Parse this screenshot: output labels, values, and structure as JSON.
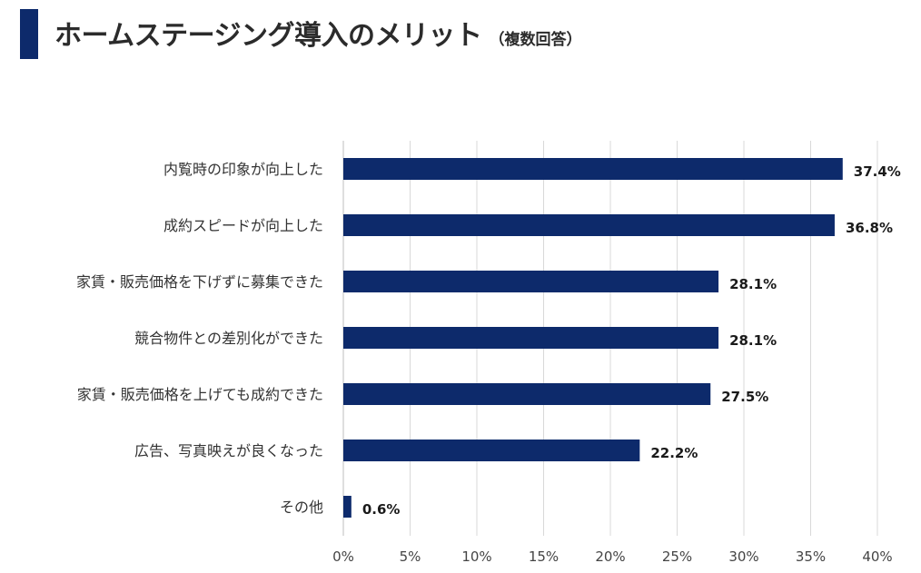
{
  "header": {
    "title": "ホームステージング導入のメリット",
    "subtitle": "（複数回答）"
  },
  "chart_data": {
    "type": "bar",
    "orientation": "horizontal",
    "categories": [
      "内覧時の印象が向上した",
      "成約スピードが向上した",
      "家賃・販売価格を下げずに募集できた",
      "競合物件との差別化ができた",
      "家賃・販売価格を上げても成約できた",
      "広告、写真映えが良くなった",
      "その他"
    ],
    "values": [
      37.4,
      36.8,
      28.1,
      28.1,
      27.5,
      22.2,
      0.6
    ],
    "value_labels": [
      "37.4%",
      "36.8%",
      "28.1%",
      "28.1%",
      "27.5%",
      "22.2%",
      "0.6%"
    ],
    "xlim": [
      0,
      40
    ],
    "x_ticks": [
      0,
      5,
      10,
      15,
      20,
      25,
      30,
      35,
      40
    ],
    "x_tick_labels": [
      "0%",
      "5%",
      "10%",
      "15%",
      "20%",
      "25%",
      "30%",
      "35%",
      "40%"
    ],
    "grid": true,
    "legend": "none",
    "bar_color": "#0d2a6b",
    "accent_color": "#0d2a6b"
  }
}
